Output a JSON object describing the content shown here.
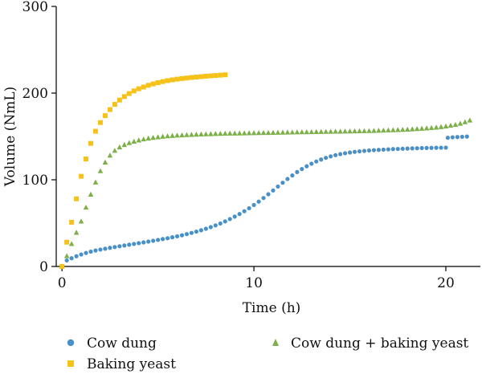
{
  "chart_data": {
    "type": "scatter",
    "title": "",
    "xlabel": "Time (h)",
    "ylabel": "Volume (NmL)",
    "xlim": [
      -0.3,
      21.8
    ],
    "ylim": [
      0,
      300
    ],
    "xticks": [
      0,
      10,
      20
    ],
    "yticks": [
      0,
      100,
      200,
      300
    ],
    "grid": false,
    "legend_position": "bottom",
    "series": [
      {
        "name": "Cow dung",
        "marker": "circle",
        "color": "#4a90c8",
        "x": [
          0,
          0.25,
          0.5,
          0.75,
          1,
          1.25,
          1.5,
          1.75,
          2,
          2.25,
          2.5,
          2.75,
          3,
          3.25,
          3.5,
          3.75,
          4,
          4.25,
          4.5,
          4.75,
          5,
          5.25,
          5.5,
          5.75,
          6,
          6.25,
          6.5,
          6.75,
          7,
          7.25,
          7.5,
          7.75,
          8,
          8.25,
          8.5,
          8.75,
          9,
          9.25,
          9.5,
          9.75,
          10,
          10.25,
          10.5,
          10.75,
          11,
          11.25,
          11.5,
          11.75,
          12,
          12.25,
          12.5,
          12.75,
          13,
          13.25,
          13.5,
          13.75,
          14,
          14.25,
          14.5,
          14.75,
          15,
          15.25,
          15.5,
          15.75,
          16,
          16.25,
          16.5,
          16.75,
          17,
          17.25,
          17.5,
          17.75,
          18,
          18.25,
          18.5,
          18.75,
          19,
          19.25,
          19.5,
          19.75,
          20,
          20.1,
          20.35,
          20.6,
          20.85,
          21.1
        ],
        "y": [
          0,
          7,
          9.5,
          11.8,
          13.8,
          15.6,
          17.1,
          18.4,
          19.5,
          20.5,
          21.5,
          22.4,
          23.3,
          24.2,
          25.1,
          26,
          26.9,
          27.8,
          28.7,
          29.6,
          30.6,
          31.6,
          32.6,
          33.7,
          34.8,
          36,
          37.3,
          38.7,
          40.2,
          41.8,
          43.5,
          45.4,
          47.4,
          49.6,
          52,
          54.7,
          57.5,
          60.5,
          63.7,
          67.2,
          70.9,
          74.8,
          79,
          83.3,
          87.7,
          92.2,
          96.6,
          100.9,
          105,
          108.9,
          112.4,
          115.6,
          118.5,
          121.1,
          123.4,
          125.3,
          127,
          128.4,
          129.6,
          130.6,
          131.5,
          132.2,
          132.8,
          133.3,
          133.8,
          134.2,
          134.5,
          134.8,
          135.1,
          135.4,
          135.6,
          135.8,
          136,
          136.2,
          136.4,
          136.6,
          136.7,
          136.8,
          136.9,
          137,
          137.1,
          148.5,
          149,
          149.3,
          149.6,
          149.9
        ]
      },
      {
        "name": "Baking yeast",
        "marker": "square",
        "color": "#f5c11b",
        "x": [
          0,
          0.25,
          0.5,
          0.75,
          1,
          1.25,
          1.5,
          1.75,
          2,
          2.25,
          2.5,
          2.75,
          3,
          3.25,
          3.5,
          3.75,
          4,
          4.25,
          4.5,
          4.75,
          5,
          5.25,
          5.5,
          5.75,
          6,
          6.25,
          6.5,
          6.75,
          7,
          7.25,
          7.5,
          7.75,
          8,
          8.25,
          8.5
        ],
        "y": [
          0,
          28,
          51,
          78,
          104,
          124,
          142,
          156,
          166,
          174,
          181,
          187,
          192,
          196,
          199.5,
          202.5,
          205,
          207,
          209,
          210.6,
          212,
          213.3,
          214.4,
          215.3,
          216.1,
          216.8,
          217.4,
          218,
          218.5,
          219,
          219.5,
          219.9,
          220.3,
          220.7,
          221.1
        ]
      },
      {
        "name": "Cow dung + baking yeast",
        "marker": "triangle",
        "color": "#7db04a",
        "x": [
          0,
          0.25,
          0.5,
          0.75,
          1,
          1.25,
          1.5,
          1.75,
          2,
          2.25,
          2.5,
          2.75,
          3,
          3.25,
          3.5,
          3.75,
          4,
          4.25,
          4.5,
          4.75,
          5,
          5.25,
          5.5,
          5.75,
          6,
          6.25,
          6.5,
          6.75,
          7,
          7.25,
          7.5,
          7.75,
          8,
          8.25,
          8.5,
          8.75,
          9,
          9.25,
          9.5,
          9.75,
          10,
          10.25,
          10.5,
          10.75,
          11,
          11.25,
          11.5,
          11.75,
          12,
          12.25,
          12.5,
          12.75,
          13,
          13.25,
          13.5,
          13.75,
          14,
          14.25,
          14.5,
          14.75,
          15,
          15.25,
          15.5,
          15.75,
          16,
          16.25,
          16.5,
          16.75,
          17,
          17.25,
          17.5,
          17.75,
          18,
          18.25,
          18.5,
          18.75,
          19,
          19.25,
          19.5,
          19.75,
          20,
          20.25,
          20.5,
          20.75,
          21,
          21.25
        ],
        "y": [
          0,
          12,
          26,
          39,
          52,
          68,
          83,
          97,
          110,
          120,
          128,
          133.5,
          137.5,
          140.3,
          142.4,
          144.1,
          145.5,
          146.7,
          147.7,
          148.5,
          149.2,
          149.8,
          150.3,
          150.7,
          151.1,
          151.4,
          151.7,
          152,
          152.2,
          152.4,
          152.6,
          152.8,
          153,
          153.1,
          153.3,
          153.4,
          153.5,
          153.6,
          153.7,
          153.8,
          153.9,
          154,
          154.1,
          154.2,
          154.3,
          154.4,
          154.5,
          154.6,
          154.7,
          154.8,
          154.9,
          155,
          155.1,
          155.2,
          155.3,
          155.4,
          155.5,
          155.6,
          155.7,
          155.8,
          155.9,
          156,
          156.1,
          156.2,
          156.3,
          156.5,
          156.7,
          156.9,
          157.1,
          157.3,
          157.5,
          157.7,
          158,
          158.3,
          158.6,
          159,
          159.4,
          159.8,
          160.3,
          160.9,
          161.6,
          162.5,
          163.5,
          164.8,
          166.5,
          168.5
        ]
      }
    ]
  }
}
